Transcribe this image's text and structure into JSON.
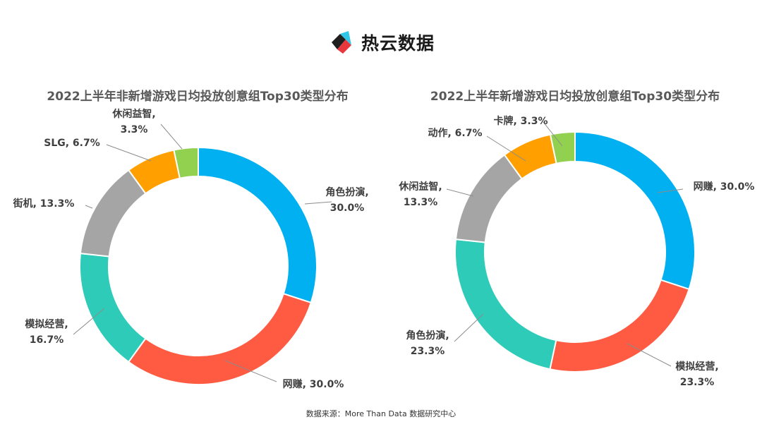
{
  "brand": {
    "name": "热云数据",
    "logo_icon": "reyun-logo-icon"
  },
  "source": "数据来源：More Than Data 数据研究中心",
  "chart_data": [
    {
      "type": "pie",
      "donut": true,
      "title": "2022上半年非新增游戏日均投放创意组Top30类型分布",
      "categories": [
        "角色扮演",
        "网赚",
        "模拟经营",
        "街机",
        "SLG",
        "休闲益智"
      ],
      "values": [
        30.0,
        30.0,
        16.7,
        13.3,
        6.7,
        3.3
      ],
      "labels": [
        "角色扮演,\n30.0%",
        "网赚, 30.0%",
        "模拟经营,\n16.7%",
        "街机, 13.3%",
        "SLG, 6.7%",
        "休闲益智,\n3.3%"
      ],
      "colors": [
        "#00B0F0",
        "#FF5A42",
        "#2ECBB8",
        "#A5A5A5",
        "#FF9F00",
        "#92D050"
      ],
      "legend": "none"
    },
    {
      "type": "pie",
      "donut": true,
      "title": "2022上半年新增游戏日均投放创意组Top30类型分布",
      "categories": [
        "网赚",
        "模拟经营",
        "角色扮演",
        "休闲益智",
        "动作",
        "卡牌"
      ],
      "values": [
        30.0,
        23.3,
        23.3,
        13.3,
        6.7,
        3.3
      ],
      "labels": [
        "网赚, 30.0%",
        "模拟经营,\n23.3%",
        "角色扮演,\n23.3%",
        "休闲益智,\n13.3%",
        "动作, 6.7%",
        "卡牌, 3.3%"
      ],
      "colors": [
        "#00B0F0",
        "#FF5A42",
        "#2ECBB8",
        "#A5A5A5",
        "#FF9F00",
        "#92D050"
      ],
      "legend": "none"
    }
  ]
}
